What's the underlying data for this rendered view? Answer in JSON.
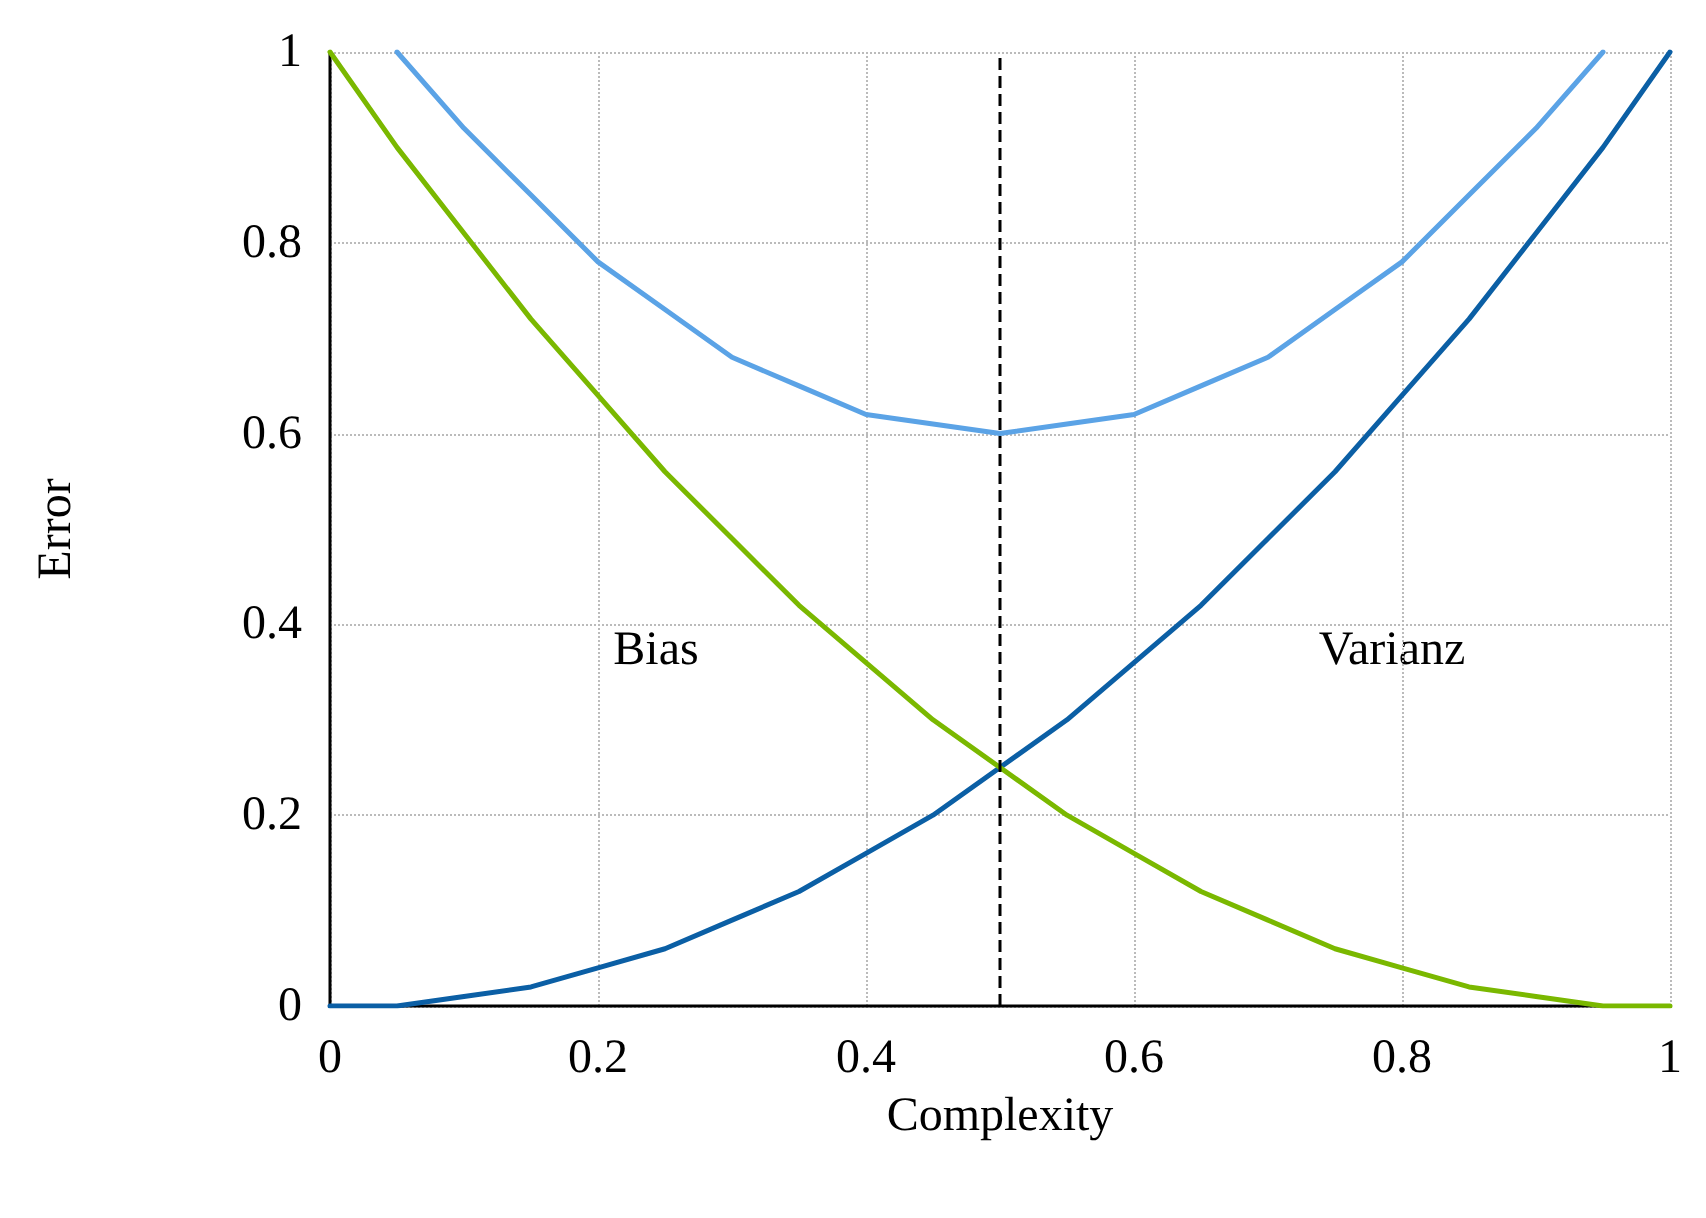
{
  "chart_data": {
    "type": "line",
    "xlabel": "Complexity",
    "ylabel": "Error",
    "xlim": [
      0,
      1
    ],
    "ylim": [
      0,
      1
    ],
    "xticks": [
      0,
      0.2,
      0.4,
      0.6,
      0.8,
      1
    ],
    "yticks": [
      0,
      0.2,
      0.4,
      0.6,
      0.8,
      1
    ],
    "grid": true,
    "marker": "none",
    "line_style": "solid",
    "series": [
      {
        "color": "#5ba3e6",
        "x": [
          0.05,
          0.1,
          0.15,
          0.2,
          0.25,
          0.3,
          0.35,
          0.4,
          0.45,
          0.5,
          0.55,
          0.6,
          0.65,
          0.7,
          0.75,
          0.8,
          0.85,
          0.9,
          0.95
        ],
        "values": [
          1.0,
          0.92,
          0.85,
          0.78,
          0.73,
          0.68,
          0.65,
          0.62,
          0.61,
          0.6,
          0.61,
          0.62,
          0.65,
          0.68,
          0.73,
          0.78,
          0.85,
          0.92,
          1.0
        ]
      },
      {
        "color": "#0b5fa5",
        "x": [
          0,
          0.05,
          0.1,
          0.15,
          0.2,
          0.25,
          0.3,
          0.35,
          0.4,
          0.45,
          0.5,
          0.55,
          0.6,
          0.65,
          0.7,
          0.75,
          0.8,
          0.85,
          0.9,
          0.95,
          1
        ],
        "values": [
          0,
          0,
          0.01,
          0.02,
          0.04,
          0.06,
          0.09,
          0.12,
          0.16,
          0.2,
          0.25,
          0.3,
          0.36,
          0.42,
          0.49,
          0.56,
          0.64,
          0.72,
          0.81,
          0.9,
          1.0
        ]
      },
      {
        "color": "#7ab800",
        "x": [
          0,
          0.05,
          0.1,
          0.15,
          0.2,
          0.25,
          0.3,
          0.35,
          0.4,
          0.45,
          0.5,
          0.55,
          0.6,
          0.65,
          0.7,
          0.75,
          0.8,
          0.85,
          0.9,
          0.95,
          1
        ],
        "values": [
          1.0,
          0.9,
          0.81,
          0.72,
          0.64,
          0.56,
          0.49,
          0.42,
          0.36,
          0.3,
          0.25,
          0.2,
          0.16,
          0.12,
          0.09,
          0.06,
          0.04,
          0.02,
          0.01,
          0,
          0
        ]
      }
    ],
    "ref_lines": [
      {
        "axis": "x",
        "value": 0.5,
        "color": "#000000",
        "line_style": "dashed"
      }
    ],
    "annotations": [
      "Bias",
      "Varianz"
    ]
  }
}
